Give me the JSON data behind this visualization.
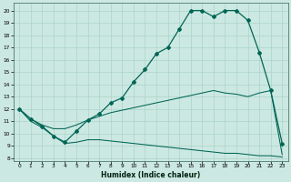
{
  "xlabel": "Humidex (Indice chaleur)",
  "bg_color": "#cce8e2",
  "line_color": "#006655",
  "grid_color": "#aad4c8",
  "xlim": [
    -0.5,
    23.5
  ],
  "ylim": [
    7.8,
    20.6
  ],
  "yticks": [
    8,
    9,
    10,
    11,
    12,
    13,
    14,
    15,
    16,
    17,
    18,
    19,
    20
  ],
  "xticks": [
    0,
    1,
    2,
    3,
    4,
    5,
    6,
    7,
    8,
    9,
    10,
    11,
    12,
    13,
    14,
    15,
    16,
    17,
    18,
    19,
    20,
    21,
    22,
    23
  ],
  "line1_x": [
    0,
    1,
    2,
    3,
    4,
    5,
    6,
    7,
    8,
    9,
    10,
    11,
    12,
    13,
    14,
    15,
    16,
    17,
    18,
    19,
    20,
    21,
    22,
    23
  ],
  "line1_y": [
    12,
    11.2,
    10.6,
    9.8,
    9.3,
    10.2,
    11.1,
    11.6,
    12.5,
    12.9,
    14.2,
    15.2,
    16.5,
    17.0,
    18.5,
    20.0,
    20.0,
    19.5,
    20.0,
    20.0,
    19.2,
    16.6,
    13.5,
    9.2
  ],
  "line2_x": [
    0,
    1,
    2,
    3,
    4,
    5,
    6,
    7,
    8,
    9,
    10,
    11,
    12,
    13,
    14,
    15,
    16,
    17,
    18,
    19,
    20,
    21,
    22,
    23
  ],
  "line2_y": [
    12.0,
    11.2,
    10.7,
    10.4,
    10.4,
    10.7,
    11.1,
    11.4,
    11.7,
    11.9,
    12.1,
    12.3,
    12.5,
    12.7,
    12.9,
    13.1,
    13.3,
    13.5,
    13.3,
    13.2,
    13.0,
    13.3,
    13.5,
    8.3
  ],
  "line3_x": [
    0,
    1,
    2,
    3,
    4,
    5,
    6,
    7,
    8,
    9,
    10,
    11,
    12,
    13,
    14,
    15,
    16,
    17,
    18,
    19,
    20,
    21,
    22,
    23
  ],
  "line3_y": [
    12.0,
    11.0,
    10.5,
    9.8,
    9.2,
    9.3,
    9.5,
    9.5,
    9.4,
    9.3,
    9.2,
    9.1,
    9.0,
    8.9,
    8.8,
    8.7,
    8.6,
    8.5,
    8.4,
    8.4,
    8.3,
    8.2,
    8.2,
    8.1
  ]
}
